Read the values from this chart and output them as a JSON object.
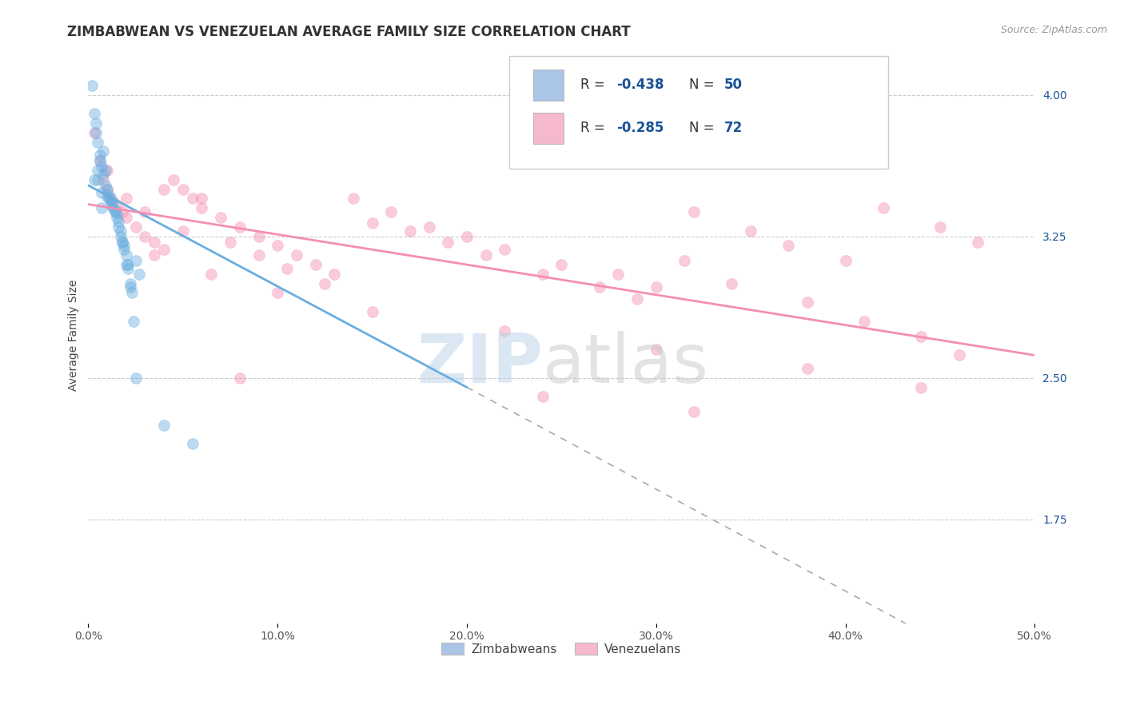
{
  "title": "ZIMBABWEAN VS VENEZUELAN AVERAGE FAMILY SIZE CORRELATION CHART",
  "source_text": "Source: ZipAtlas.com",
  "ylabel": "Average Family Size",
  "x_min": 0.0,
  "x_max": 50.0,
  "y_min": 1.2,
  "y_max": 4.25,
  "yticks_right": [
    1.75,
    2.5,
    3.25,
    4.0
  ],
  "xtick_labels": [
    "0.0%",
    "10.0%",
    "20.0%",
    "30.0%",
    "40.0%",
    "50.0%"
  ],
  "xtick_values": [
    0,
    10,
    20,
    30,
    40,
    50
  ],
  "legend_entries": [
    {
      "label_r": "-0.438",
      "label_n": "50",
      "color": "#aac5e8"
    },
    {
      "label_r": "-0.285",
      "label_n": "72",
      "color": "#f5b8cc"
    }
  ],
  "legend_bottom": [
    "Zimbabweans",
    "Venezuelans"
  ],
  "legend_bottom_colors": [
    "#aac5e8",
    "#f5b8cc"
  ],
  "blue_color": "#6aaee0",
  "pink_color": "#f48fb1",
  "r_value_color": "#1a5296",
  "watermark_zip_color": "#b8d0e8",
  "watermark_atlas_color": "#c8c8c8",
  "blue_scatter_x": [
    0.2,
    0.4,
    0.5,
    0.6,
    0.7,
    0.8,
    0.9,
    1.0,
    1.1,
    1.2,
    1.3,
    1.4,
    1.5,
    1.6,
    1.7,
    1.8,
    1.9,
    2.0,
    2.1,
    2.2,
    2.4,
    2.5,
    2.7,
    0.3,
    0.5,
    0.7,
    0.9,
    1.1,
    1.3,
    1.5,
    1.7,
    1.9,
    2.1,
    2.3,
    0.4,
    0.6,
    0.8,
    1.0,
    1.2,
    1.4,
    1.6,
    1.8,
    2.0,
    2.2,
    0.3,
    0.5,
    0.7,
    4.0,
    5.5,
    2.5
  ],
  "blue_scatter_y": [
    4.05,
    3.8,
    3.55,
    3.65,
    3.48,
    3.7,
    3.6,
    3.5,
    3.45,
    3.42,
    3.4,
    3.38,
    3.35,
    3.3,
    3.25,
    3.22,
    3.18,
    3.15,
    3.08,
    3.0,
    2.8,
    3.12,
    3.05,
    3.9,
    3.75,
    3.62,
    3.52,
    3.47,
    3.43,
    3.37,
    3.28,
    3.2,
    3.1,
    2.95,
    3.85,
    3.68,
    3.58,
    3.46,
    3.44,
    3.39,
    3.33,
    3.22,
    3.1,
    2.98,
    3.55,
    3.6,
    3.4,
    2.25,
    2.15,
    2.5
  ],
  "pink_scatter_x": [
    0.3,
    0.6,
    0.8,
    1.0,
    1.2,
    1.5,
    1.8,
    2.0,
    2.5,
    3.0,
    3.5,
    4.0,
    4.5,
    5.0,
    5.5,
    6.0,
    7.0,
    8.0,
    9.0,
    10.0,
    11.0,
    12.0,
    13.0,
    14.0,
    16.0,
    18.0,
    20.0,
    22.0,
    25.0,
    28.0,
    30.0,
    32.0,
    35.0,
    37.0,
    40.0,
    42.0,
    45.0,
    47.0,
    1.0,
    2.0,
    3.0,
    4.0,
    5.0,
    6.0,
    7.5,
    9.0,
    10.5,
    12.5,
    15.0,
    17.0,
    19.0,
    21.0,
    24.0,
    27.0,
    29.0,
    31.5,
    34.0,
    38.0,
    41.0,
    44.0,
    3.5,
    6.5,
    10.0,
    15.0,
    22.0,
    30.0,
    38.0,
    44.0,
    8.0,
    24.0,
    32.0,
    46.0
  ],
  "pink_scatter_y": [
    3.8,
    3.65,
    3.55,
    3.5,
    3.45,
    3.42,
    3.38,
    3.35,
    3.3,
    3.25,
    3.22,
    3.18,
    3.55,
    3.5,
    3.45,
    3.4,
    3.35,
    3.3,
    3.25,
    3.2,
    3.15,
    3.1,
    3.05,
    3.45,
    3.38,
    3.3,
    3.25,
    3.18,
    3.1,
    3.05,
    2.98,
    3.38,
    3.28,
    3.2,
    3.12,
    3.4,
    3.3,
    3.22,
    3.6,
    3.45,
    3.38,
    3.5,
    3.28,
    3.45,
    3.22,
    3.15,
    3.08,
    3.0,
    3.32,
    3.28,
    3.22,
    3.15,
    3.05,
    2.98,
    2.92,
    3.12,
    3.0,
    2.9,
    2.8,
    2.72,
    3.15,
    3.05,
    2.95,
    2.85,
    2.75,
    2.65,
    2.55,
    2.45,
    2.5,
    2.4,
    2.32,
    2.62
  ],
  "blue_line_x": [
    0.0,
    20.0
  ],
  "blue_line_y": [
    3.52,
    2.45
  ],
  "pink_line_x": [
    0.0,
    50.0
  ],
  "pink_line_y": [
    3.42,
    2.62
  ],
  "dashed_line_x": [
    20.0,
    50.0
  ],
  "dashed_line_y": [
    2.45,
    0.83
  ],
  "dashed_color": "#aaaaaa",
  "grid_color": "#cccccc",
  "background_color": "#ffffff",
  "title_fontsize": 12,
  "axis_label_fontsize": 10,
  "tick_fontsize": 10,
  "scatter_size": 100,
  "scatter_alpha": 0.45,
  "line_width": 2.0
}
